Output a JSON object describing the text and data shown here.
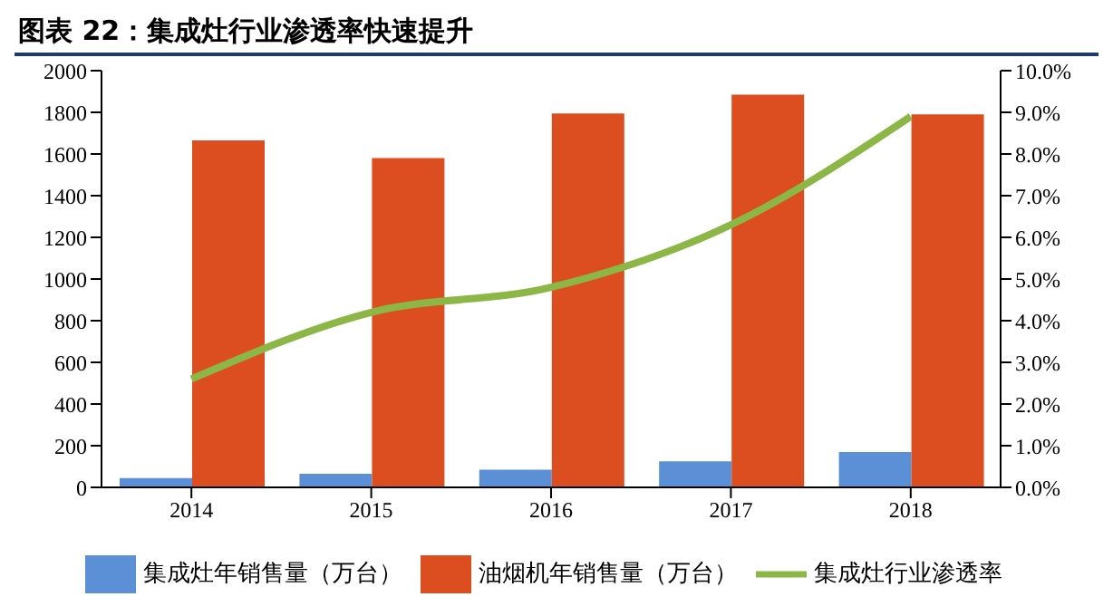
{
  "chart_data": {
    "type": "bar",
    "title": "图表 22：集成灶行业渗透率快速提升",
    "categories": [
      "2014",
      "2015",
      "2016",
      "2017",
      "2018"
    ],
    "series": [
      {
        "name": "集成灶年销售量（万台）",
        "color": "#5b8fd6",
        "values": [
          45,
          65,
          85,
          125,
          170
        ]
      },
      {
        "name": "油烟机年销售量（万台）",
        "color": "#dc4e1f",
        "values": [
          1665,
          1580,
          1795,
          1885,
          1790
        ]
      },
      {
        "name": "集成灶行业渗透率",
        "type": "line",
        "axis": "y2",
        "color": "#8cb645",
        "values": [
          2.6,
          4.2,
          4.8,
          6.3,
          8.9
        ]
      }
    ],
    "ylim": [
      0,
      2000
    ],
    "yticks": [
      0,
      200,
      400,
      600,
      800,
      1000,
      1200,
      1400,
      1600,
      1800,
      2000
    ],
    "y2lim": [
      0,
      10
    ],
    "y2ticks": [
      {
        "value": 0,
        "label": "0.0%"
      },
      {
        "value": 1,
        "label": "1.0%"
      },
      {
        "value": 2,
        "label": "2.0%"
      },
      {
        "value": 3,
        "label": "3.0%"
      },
      {
        "value": 4,
        "label": "4.0%"
      },
      {
        "value": 5,
        "label": "5.0%"
      },
      {
        "value": 6,
        "label": "6.0%"
      },
      {
        "value": 7,
        "label": "7.0%"
      },
      {
        "value": 8,
        "label": "8.0%"
      },
      {
        "value": 9,
        "label": "9.0%"
      },
      {
        "value": 10,
        "label": "10.0%"
      }
    ],
    "legend": "bottom",
    "grid": false,
    "marker": "none"
  }
}
